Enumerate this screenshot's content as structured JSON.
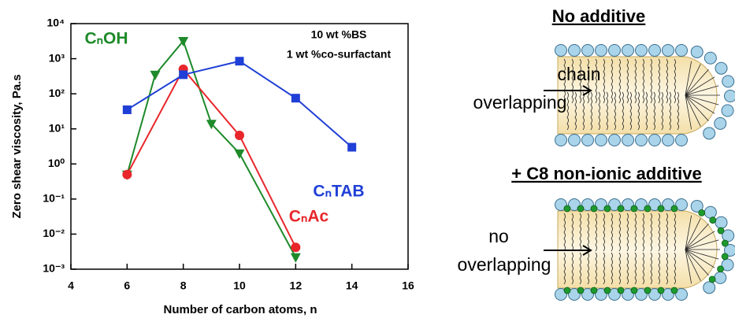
{
  "chart_data": {
    "type": "line",
    "xlabel": "Number of carbon atoms, n",
    "ylabel": "Zero shear viscosity, Pa.s",
    "annotations": [
      "10 wt %BS",
      "1 wt %co-surfactant"
    ],
    "xlim": [
      4,
      16
    ],
    "xticks": [
      4,
      6,
      8,
      10,
      12,
      14,
      16
    ],
    "ylim": [
      0.001,
      10000
    ],
    "log_y": true,
    "yticks": [
      {
        "value": 0.001,
        "label": "10⁻³"
      },
      {
        "value": 0.01,
        "label": "10⁻²"
      },
      {
        "value": 0.1,
        "label": "10⁻¹"
      },
      {
        "value": 1,
        "label": "10⁰"
      },
      {
        "value": 10,
        "label": "10¹"
      },
      {
        "value": 100,
        "label": "10²"
      },
      {
        "value": 1000,
        "label": "10³"
      },
      {
        "value": 10000,
        "label": "10⁴"
      }
    ],
    "series": [
      {
        "name": "CₙOH",
        "color": "#1e8a2a",
        "marker": "triangle-down",
        "x": [
          6,
          7,
          8,
          9,
          10,
          12
        ],
        "values": [
          0.5,
          350,
          3200,
          14,
          2,
          0.0022
        ]
      },
      {
        "name": "CₙAc",
        "color": "#e8262b",
        "marker": "circle",
        "x": [
          6,
          8,
          10,
          12
        ],
        "values": [
          0.5,
          500,
          6.5,
          0.0042
        ]
      },
      {
        "name": "CₙTAB",
        "color": "#1f3fd6",
        "marker": "square",
        "x": [
          6,
          8,
          10,
          12,
          14
        ],
        "values": [
          35,
          350,
          850,
          75,
          3
        ]
      }
    ]
  },
  "diagram": {
    "panels": [
      {
        "title": "No additive",
        "labels": [
          "chain",
          "overlapping"
        ]
      },
      {
        "title": "+ C8 non-ionic additive",
        "labels": [
          "no",
          "overlapping"
        ]
      }
    ]
  }
}
